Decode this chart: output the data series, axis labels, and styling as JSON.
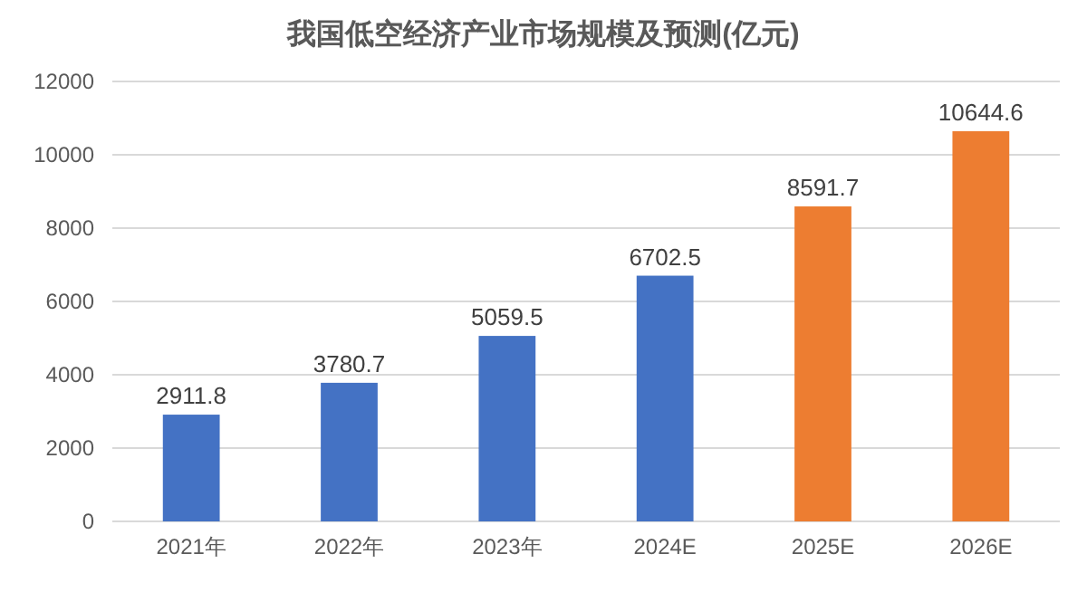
{
  "chart_data": {
    "type": "bar",
    "title": "我国低空经济产业市场规模及预测(亿元)",
    "categories": [
      "2021年",
      "2022年",
      "2023年",
      "2024E",
      "2025E",
      "2026E"
    ],
    "values": [
      2911.8,
      3780.7,
      5059.5,
      6702.5,
      8591.7,
      10644.6
    ],
    "colors": [
      "#4472c4",
      "#4472c4",
      "#4472c4",
      "#4472c4",
      "#ed7d31",
      "#ed7d31"
    ],
    "ylim": [
      0,
      12000
    ],
    "yticks": [
      0,
      2000,
      4000,
      6000,
      8000,
      10000,
      12000
    ],
    "grid": "y",
    "data_labels": true
  }
}
